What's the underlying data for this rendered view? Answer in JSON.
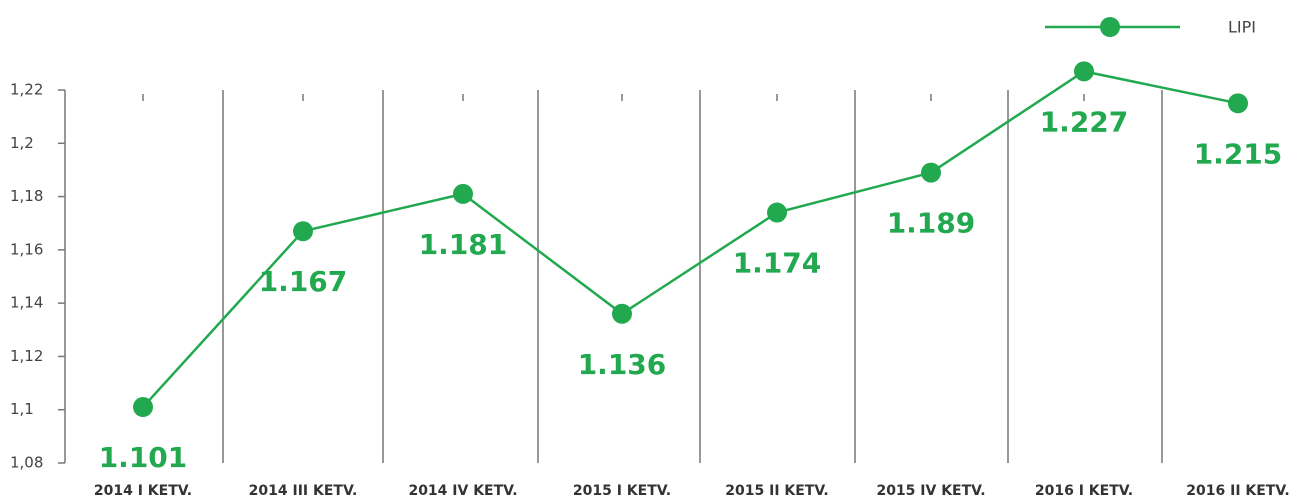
{
  "chart_data": {
    "type": "line",
    "categories": [
      "2014 I KETV.",
      "2014 III KETV.",
      "2014 IV KETV.",
      "2015 I KETV.",
      "2015 II KETV.",
      "2015 IV KETV.",
      "2016 I KETV.",
      "2016 II KETV."
    ],
    "series": [
      {
        "name": "LIPI",
        "color": "#22a94f",
        "values": [
          1.101,
          1.167,
          1.181,
          1.136,
          1.174,
          1.189,
          1.227,
          1.215
        ]
      }
    ],
    "ylim": [
      1.08,
      1.22
    ],
    "yticks": [
      {
        "value": 1.08,
        "label": "1,08"
      },
      {
        "value": 1.1,
        "label": "1,1"
      },
      {
        "value": 1.12,
        "label": "1,12"
      },
      {
        "value": 1.14,
        "label": "1,14"
      },
      {
        "value": 1.16,
        "label": "1,16"
      },
      {
        "value": 1.18,
        "label": "1,18"
      },
      {
        "value": 1.2,
        "label": "1,2"
      },
      {
        "value": 1.22,
        "label": "1,22"
      }
    ],
    "legend": "top-right"
  }
}
